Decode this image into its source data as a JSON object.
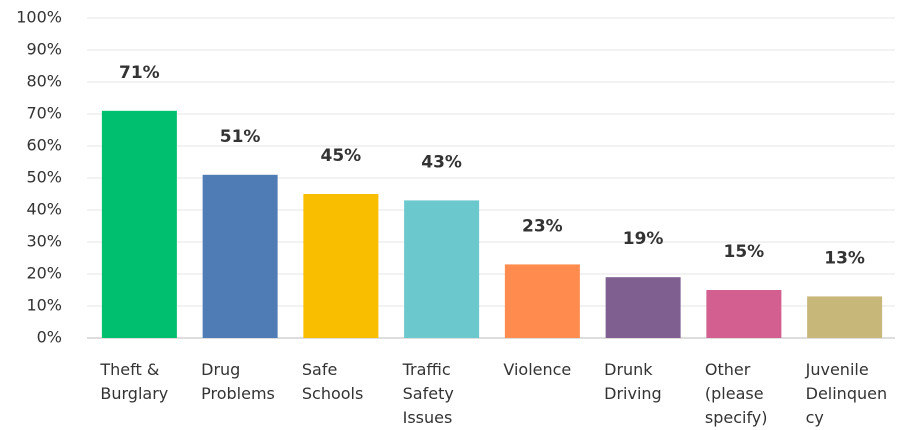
{
  "chart_data": {
    "type": "bar",
    "categories": [
      "Theft & Burglary",
      "Drug Problems",
      "Safe Schools",
      "Traffic Safety Issues",
      "Violence",
      "Drunk Driving",
      "Other (please specify)",
      "Juvenile Delinquency"
    ],
    "values": [
      71,
      51,
      45,
      43,
      23,
      19,
      15,
      13
    ],
    "value_labels": [
      "71%",
      "51%",
      "45%",
      "43%",
      "23%",
      "19%",
      "15%",
      "13%"
    ],
    "colors": [
      "#00bf6f",
      "#507cb6",
      "#f9be00",
      "#6bc8cd",
      "#ff8b4f",
      "#7f5f90",
      "#d25f90",
      "#c7b879"
    ],
    "ylim": [
      0,
      100
    ],
    "yticks": [
      {
        "value": 0,
        "label": "0%"
      },
      {
        "value": 10,
        "label": "10%"
      },
      {
        "value": 20,
        "label": "20%"
      },
      {
        "value": 30,
        "label": "30%"
      },
      {
        "value": 40,
        "label": "40%"
      },
      {
        "value": 50,
        "label": "50%"
      },
      {
        "value": 60,
        "label": "60%"
      },
      {
        "value": 70,
        "label": "70%"
      },
      {
        "value": 80,
        "label": "80%"
      },
      {
        "value": 90,
        "label": "90%"
      },
      {
        "value": 100,
        "label": "100%"
      }
    ],
    "grid": true
  }
}
